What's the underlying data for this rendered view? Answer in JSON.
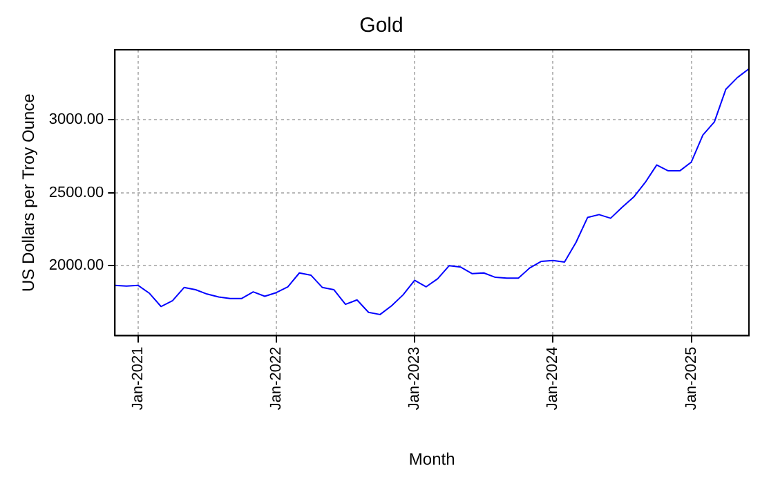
{
  "chart_data": {
    "type": "line",
    "title": "Gold",
    "xlabel": "Month",
    "ylabel": "US Dollars per Troy Ounce",
    "x": [
      "2020-11",
      "2020-12",
      "2021-01",
      "2021-02",
      "2021-03",
      "2021-04",
      "2021-05",
      "2021-06",
      "2021-07",
      "2021-08",
      "2021-09",
      "2021-10",
      "2021-11",
      "2021-12",
      "2022-01",
      "2022-02",
      "2022-03",
      "2022-04",
      "2022-05",
      "2022-06",
      "2022-07",
      "2022-08",
      "2022-09",
      "2022-10",
      "2022-11",
      "2022-12",
      "2023-01",
      "2023-02",
      "2023-03",
      "2023-04",
      "2023-05",
      "2023-06",
      "2023-07",
      "2023-08",
      "2023-09",
      "2023-10",
      "2023-11",
      "2023-12",
      "2024-01",
      "2024-02",
      "2024-03",
      "2024-04",
      "2024-05",
      "2024-06",
      "2024-07",
      "2024-08",
      "2024-09",
      "2024-10",
      "2024-11",
      "2024-12",
      "2025-01",
      "2025-02",
      "2025-03",
      "2025-04",
      "2025-05",
      "2025-06"
    ],
    "series": [
      {
        "color": "#0000ff",
        "values": [
          1865,
          1860,
          1865,
          1810,
          1720,
          1760,
          1850,
          1835,
          1805,
          1785,
          1775,
          1775,
          1820,
          1790,
          1815,
          1855,
          1950,
          1935,
          1850,
          1835,
          1735,
          1765,
          1680,
          1665,
          1725,
          1800,
          1900,
          1855,
          1910,
          2000,
          1990,
          1945,
          1950,
          1920,
          1915,
          1915,
          1985,
          2030,
          2035,
          2025,
          2160,
          2330,
          2350,
          2325,
          2400,
          2470,
          2570,
          2690,
          2650,
          2650,
          2710,
          2895,
          2985,
          3210,
          3290,
          3350
        ]
      }
    ],
    "xlim": [
      "2020-11",
      "2025-06"
    ],
    "xticks": [
      {
        "value": "2021-01",
        "label": "Jan-2021"
      },
      {
        "value": "2022-01",
        "label": "Jan-2022"
      },
      {
        "value": "2023-01",
        "label": "Jan-2023"
      },
      {
        "value": "2024-01",
        "label": "Jan-2024"
      },
      {
        "value": "2025-01",
        "label": "Jan-2025"
      }
    ],
    "ylim": [
      1520,
      3480
    ],
    "yticks": [
      {
        "value": 2000,
        "label": "2000.00"
      },
      {
        "value": 2500,
        "label": "2500.00"
      },
      {
        "value": 3000,
        "label": "3000.00"
      }
    ],
    "grid": true,
    "legend": false,
    "marker": "none",
    "line_style": "solid"
  }
}
